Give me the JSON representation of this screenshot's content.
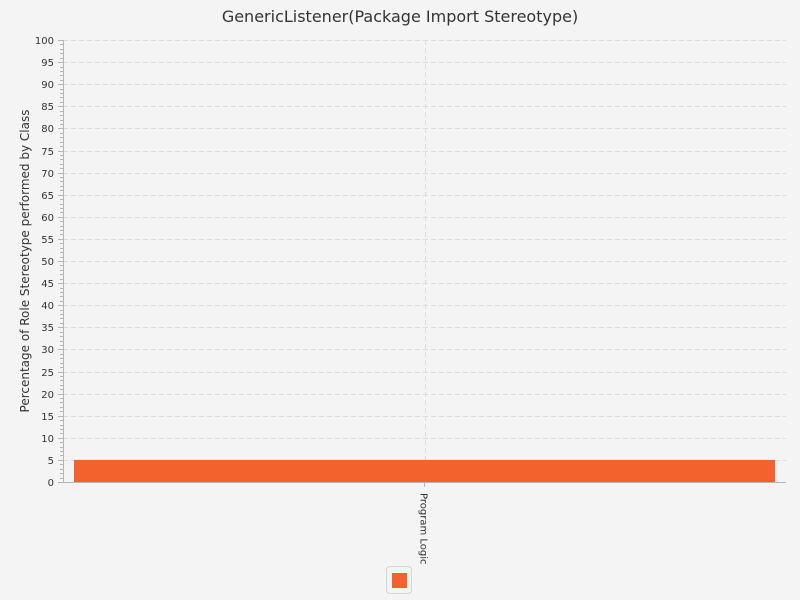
{
  "chart_data": {
    "type": "bar",
    "title": "GenericListener(Package Import Stereotype)",
    "xlabel": "",
    "ylabel": "Percentage of Role Stereotype performed by Class",
    "categories": [
      "Program Logic"
    ],
    "series": [
      {
        "values": [
          5
        ],
        "color": "#f3622d"
      }
    ],
    "ylim": [
      0,
      100
    ],
    "y_major_tick": 5,
    "y_minor_ticks_per_major": 4,
    "grid": true,
    "legend": "bottom-center"
  }
}
